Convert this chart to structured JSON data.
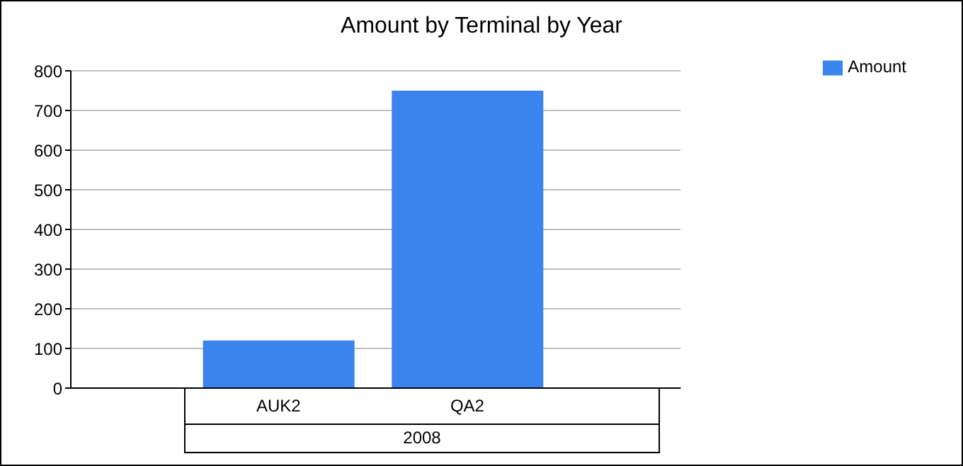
{
  "chart_data": {
    "type": "bar",
    "title": "Amount by Terminal by Year",
    "xlabel": "2008",
    "categories": [
      "AUK2",
      "QA2"
    ],
    "series": [
      {
        "name": "Amount",
        "color": "#3b84ee",
        "values": [
          120,
          750
        ]
      }
    ],
    "ylim": [
      0,
      800
    ],
    "yticks": [
      0,
      100,
      200,
      300,
      400,
      500,
      600,
      700,
      800
    ],
    "grid": "y",
    "legend": "top right"
  }
}
